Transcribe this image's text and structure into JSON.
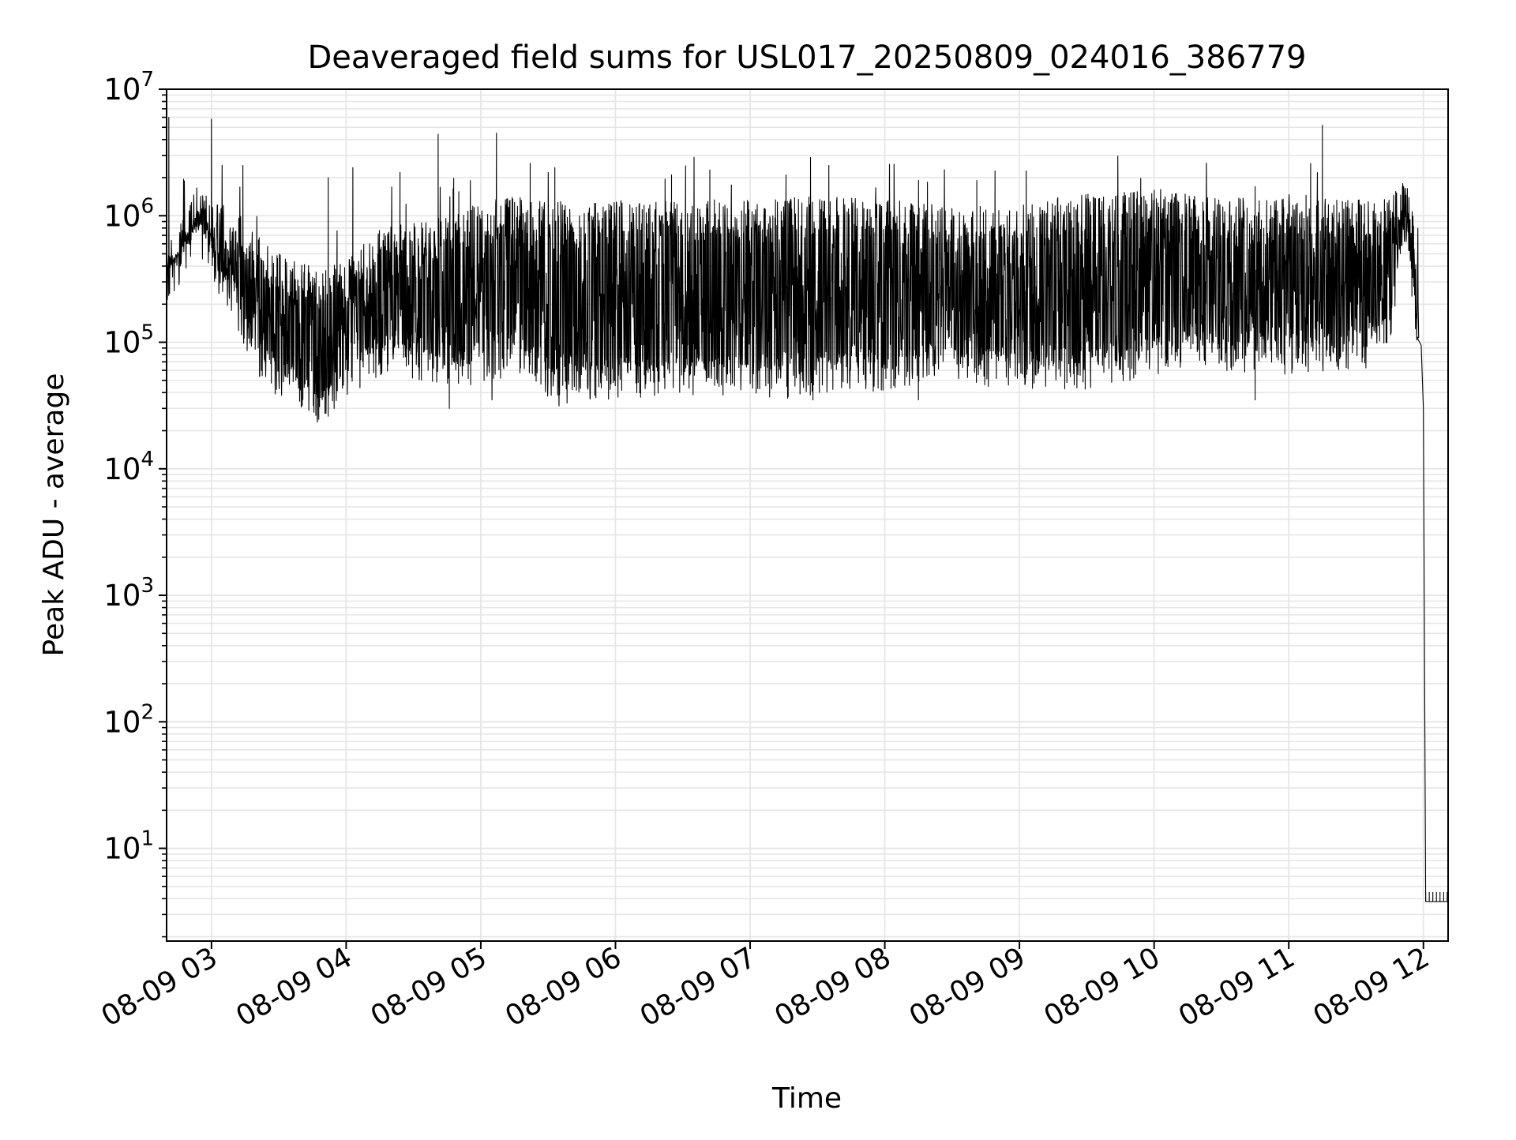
{
  "chart_data": {
    "type": "line",
    "title": "Deaveraged field sums for USL017_20250809_024016_386779",
    "xlabel": "Time",
    "ylabel": "Peak ADU - average",
    "yscale": "log",
    "ylim": [
      1.85,
      10000000
    ],
    "xlim": [
      "2025-08-09 02:40",
      "2025-08-09 12:11"
    ],
    "x_ticks": [
      "08-09 03",
      "08-09 04",
      "08-09 05",
      "08-09 06",
      "08-09 07",
      "08-09 08",
      "08-09 09",
      "08-09 10",
      "08-09 11",
      "08-09 12"
    ],
    "x_tick_times": [
      "2025-08-09 03:00",
      "2025-08-09 04:00",
      "2025-08-09 05:00",
      "2025-08-09 06:00",
      "2025-08-09 07:00",
      "2025-08-09 08:00",
      "2025-08-09 09:00",
      "2025-08-09 10:00",
      "2025-08-09 11:00",
      "2025-08-09 12:00"
    ],
    "y_ticks": [
      {
        "value": 10,
        "base": "10",
        "exp": "1"
      },
      {
        "value": 100,
        "base": "10",
        "exp": "2"
      },
      {
        "value": 1000,
        "base": "10",
        "exp": "3"
      },
      {
        "value": 10000,
        "base": "10",
        "exp": "4"
      },
      {
        "value": 100000,
        "base": "10",
        "exp": "5"
      },
      {
        "value": 1000000,
        "base": "10",
        "exp": "6"
      },
      {
        "value": 10000000,
        "base": "10",
        "exp": "7"
      }
    ],
    "grid": true,
    "line_color": "#000000",
    "grid_color": "#e6e6e6",
    "envelope": {
      "x": [
        "2025-08-09 02:40",
        "2025-08-09 02:45",
        "2025-08-09 02:55",
        "2025-08-09 03:00",
        "2025-08-09 03:10",
        "2025-08-09 03:20",
        "2025-08-09 03:35",
        "2025-08-09 03:50",
        "2025-08-09 04:00",
        "2025-08-09 04:10",
        "2025-08-09 04:20",
        "2025-08-09 04:35",
        "2025-08-09 04:50",
        "2025-08-09 05:00",
        "2025-08-09 05:15",
        "2025-08-09 05:30",
        "2025-08-09 05:35",
        "2025-08-09 05:45",
        "2025-08-09 06:00",
        "2025-08-09 06:30",
        "2025-08-09 07:00",
        "2025-08-09 07:30",
        "2025-08-09 08:00",
        "2025-08-09 08:30",
        "2025-08-09 09:00",
        "2025-08-09 09:30",
        "2025-08-09 10:00",
        "2025-08-09 10:30",
        "2025-08-09 11:00",
        "2025-08-09 11:30",
        "2025-08-09 11:45",
        "2025-08-09 11:52",
        "2025-08-09 11:58"
      ],
      "high": [
        450000,
        520000,
        1300000,
        850000,
        800000,
        500000,
        300000,
        250000,
        300000,
        500000,
        550000,
        600000,
        700000,
        900000,
        950000,
        850000,
        900000,
        850000,
        900000,
        900000,
        900000,
        950000,
        900000,
        800000,
        850000,
        1000000,
        1100000,
        900000,
        1000000,
        900000,
        900000,
        1300000,
        500000
      ],
      "low": [
        350000,
        450000,
        800000,
        500000,
        250000,
        80000,
        50000,
        35000,
        60000,
        80000,
        90000,
        80000,
        60000,
        80000,
        90000,
        60000,
        50000,
        55000,
        60000,
        60000,
        60000,
        60000,
        70000,
        80000,
        70000,
        70000,
        90000,
        100000,
        90000,
        90000,
        150000,
        1000000,
        100000
      ]
    },
    "spikes": [
      {
        "x": "2025-08-09 02:41",
        "y": 6000000
      },
      {
        "x": "2025-08-09 03:00",
        "y": 5800000
      },
      {
        "x": "2025-08-09 03:14",
        "y": 2500000
      },
      {
        "x": "2025-08-09 03:52",
        "y": 2000000
      },
      {
        "x": "2025-08-09 04:03",
        "y": 2400000
      },
      {
        "x": "2025-08-09 04:24",
        "y": 2200000
      },
      {
        "x": "2025-08-09 04:41",
        "y": 4400000
      },
      {
        "x": "2025-08-09 05:07",
        "y": 4500000
      },
      {
        "x": "2025-08-09 05:22",
        "y": 2600000
      },
      {
        "x": "2025-08-09 05:33",
        "y": 2400000
      },
      {
        "x": "2025-08-09 06:25",
        "y": 2100000
      },
      {
        "x": "2025-08-09 06:35",
        "y": 2900000
      },
      {
        "x": "2025-08-09 07:16",
        "y": 2100000
      },
      {
        "x": "2025-08-09 08:41",
        "y": 1900000
      },
      {
        "x": "2025-08-09 10:45",
        "y": 1700000
      },
      {
        "x": "2025-08-09 11:15",
        "y": 5200000
      }
    ],
    "dips": [
      {
        "x": "2025-08-09 03:52",
        "y": 26000
      },
      {
        "x": "2025-08-09 04:46",
        "y": 30000
      },
      {
        "x": "2025-08-09 05:05",
        "y": 35000
      },
      {
        "x": "2025-08-09 07:28",
        "y": 35000
      },
      {
        "x": "2025-08-09 08:15",
        "y": 35000
      },
      {
        "x": "2025-08-09 10:45",
        "y": 35000
      }
    ],
    "tail": {
      "x": [
        "2025-08-09 11:57",
        "2025-08-09 11:59",
        "2025-08-09 12:00",
        "2025-08-09 12:01",
        "2025-08-09 12:11"
      ],
      "y": [
        110000,
        95000,
        30000,
        3.8,
        3.8
      ]
    }
  }
}
